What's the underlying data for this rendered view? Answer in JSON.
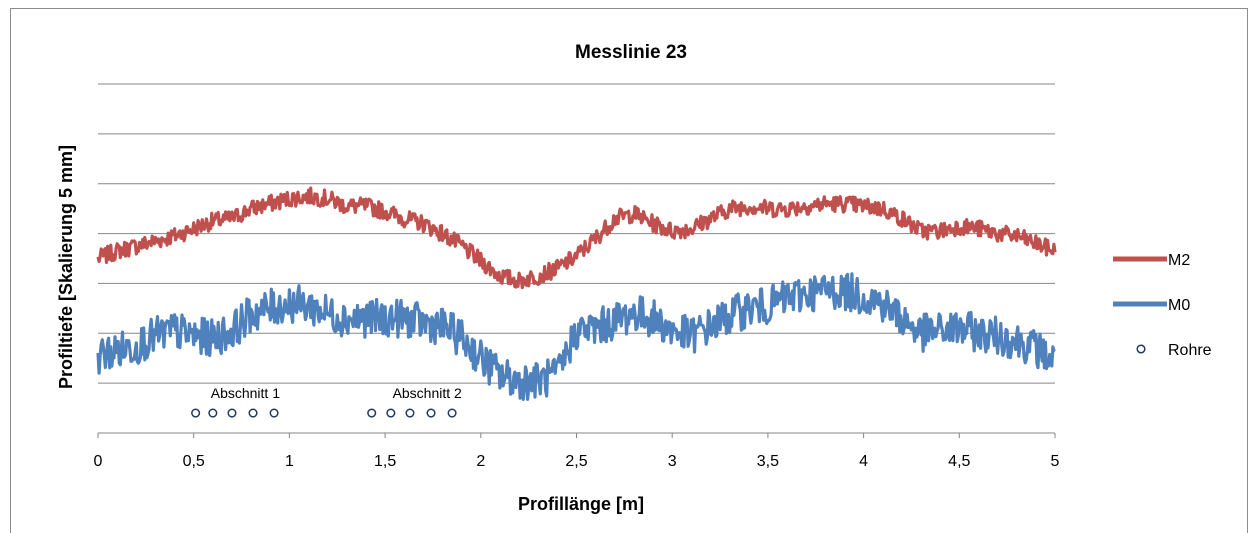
{
  "chart_data": {
    "type": "line",
    "title": "Messlinie 23",
    "xlabel": "Profillänge [m]",
    "ylabel": "Profiltiefe [Skalierung 5 mm]",
    "xlim": [
      0,
      5
    ],
    "ylim": [
      0,
      7
    ],
    "x_ticks": [
      "0",
      "0,5",
      "1",
      "1,5",
      "2",
      "2,5",
      "3",
      "3,5",
      "4",
      "4,5",
      "5"
    ],
    "grid": "horizontal",
    "legend_position": "right",
    "colors": {
      "M2": "#c0504d",
      "M0": "#4f81bd",
      "Rohre": "#1f3864"
    },
    "series": [
      {
        "name": "M2",
        "kind": "line",
        "x": [
          0,
          0.1,
          0.2,
          0.3,
          0.4,
          0.5,
          0.6,
          0.7,
          0.8,
          0.9,
          1.0,
          1.1,
          1.2,
          1.3,
          1.4,
          1.5,
          1.6,
          1.7,
          1.8,
          1.9,
          2.0,
          2.1,
          2.2,
          2.3,
          2.4,
          2.5,
          2.6,
          2.7,
          2.8,
          2.9,
          3.0,
          3.1,
          3.2,
          3.3,
          3.4,
          3.5,
          3.6,
          3.7,
          3.8,
          3.9,
          4.0,
          4.1,
          4.2,
          4.3,
          4.4,
          4.5,
          4.6,
          4.7,
          4.8,
          4.9,
          5.0
        ],
        "y": [
          3.5,
          3.65,
          3.75,
          3.85,
          3.95,
          4.1,
          4.25,
          4.3,
          4.5,
          4.6,
          4.7,
          4.75,
          4.7,
          4.55,
          4.55,
          4.45,
          4.3,
          4.2,
          4.0,
          3.75,
          3.45,
          3.15,
          3.05,
          3.15,
          3.3,
          3.55,
          3.9,
          4.3,
          4.4,
          4.2,
          4.05,
          4.1,
          4.3,
          4.5,
          4.55,
          4.5,
          4.5,
          4.55,
          4.6,
          4.6,
          4.55,
          4.5,
          4.3,
          4.05,
          4.05,
          4.15,
          4.1,
          4.0,
          3.95,
          3.8,
          3.65
        ]
      },
      {
        "name": "M0",
        "kind": "line",
        "x": [
          0,
          0.1,
          0.2,
          0.3,
          0.4,
          0.5,
          0.6,
          0.7,
          0.8,
          0.9,
          1.0,
          1.1,
          1.2,
          1.3,
          1.4,
          1.5,
          1.6,
          1.7,
          1.8,
          1.9,
          2.0,
          2.1,
          2.2,
          2.3,
          2.4,
          2.5,
          2.6,
          2.7,
          2.8,
          2.9,
          3.0,
          3.1,
          3.2,
          3.3,
          3.4,
          3.5,
          3.6,
          3.7,
          3.8,
          3.9,
          4.0,
          4.1,
          4.2,
          4.3,
          4.4,
          4.5,
          4.6,
          4.7,
          4.8,
          4.9,
          5.0
        ],
        "y": [
          1.55,
          1.65,
          1.75,
          1.95,
          2.05,
          1.95,
          1.9,
          2.05,
          2.4,
          2.5,
          2.6,
          2.55,
          2.4,
          2.3,
          2.3,
          2.3,
          2.3,
          2.2,
          2.15,
          1.9,
          1.5,
          1.15,
          1.05,
          1.05,
          1.15,
          2.05,
          2.1,
          2.25,
          2.4,
          2.3,
          2.05,
          1.95,
          2.15,
          2.35,
          2.5,
          2.55,
          2.7,
          2.8,
          2.85,
          2.85,
          2.75,
          2.6,
          2.3,
          2.0,
          2.05,
          2.1,
          2.0,
          1.95,
          1.85,
          1.7,
          1.45
        ]
      },
      {
        "name": "Rohre",
        "kind": "scatter",
        "x": [
          0.51,
          0.6,
          0.7,
          0.81,
          0.92,
          1.43,
          1.53,
          1.63,
          1.74,
          1.85
        ],
        "y": [
          0.4,
          0.4,
          0.4,
          0.4,
          0.4,
          0.4,
          0.4,
          0.4,
          0.4,
          0.4
        ]
      }
    ],
    "annotations": [
      {
        "text": "Abschnitt 1",
        "x": 0.77,
        "y": 0.7
      },
      {
        "text": "Abschnitt 2",
        "x": 1.72,
        "y": 0.7
      }
    ]
  }
}
